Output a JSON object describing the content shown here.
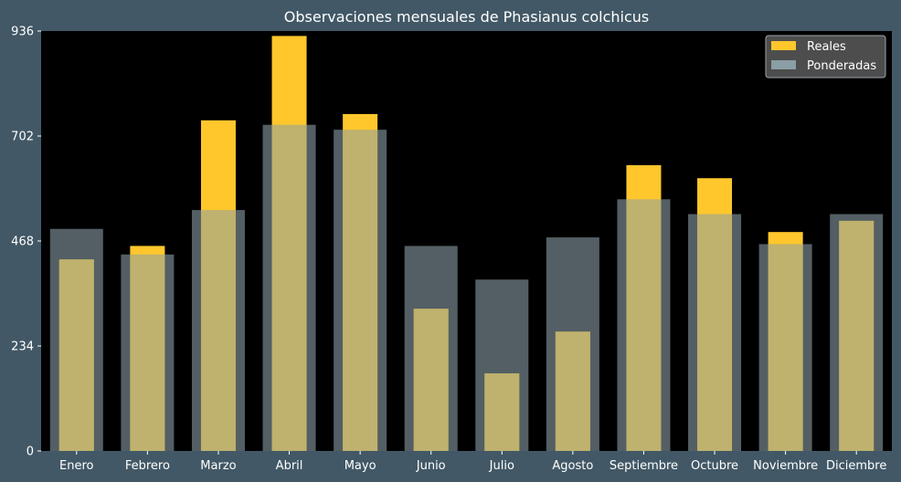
{
  "chart_data": {
    "type": "bar",
    "title": "Observaciones mensuales de Phasianus colchicus",
    "xlabel": "",
    "ylabel": "",
    "categories": [
      "Enero",
      "Febrero",
      "Marzo",
      "Abril",
      "Mayo",
      "Junio",
      "Julio",
      "Agosto",
      "Septiembre",
      "Octubre",
      "Noviembre",
      "Diciembre"
    ],
    "series": [
      {
        "name": "Ponderadas",
        "color": "#8a9ea6",
        "values": [
          495,
          438,
          537,
          727,
          716,
          457,
          382,
          476,
          561,
          528,
          461,
          528
        ]
      },
      {
        "name": "Reales",
        "color": "#ffc72c",
        "values": [
          427,
          457,
          737,
          925,
          751,
          317,
          173,
          266,
          637,
          608,
          488,
          513
        ]
      }
    ],
    "yticks": [
      0,
      234,
      468,
      702,
      936
    ],
    "ylim": [
      0,
      936
    ],
    "grid": false,
    "legend": "top-right",
    "colors": {
      "figure_background": "#425866",
      "plot_background": "#000000",
      "legend_background": "#555555",
      "text": "#ffffff"
    }
  }
}
